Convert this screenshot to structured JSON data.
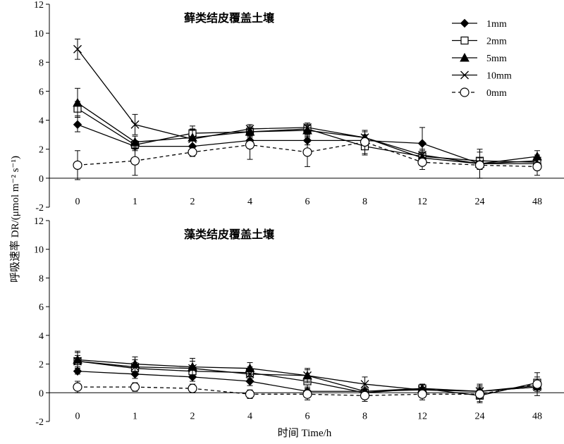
{
  "figure": {
    "y_axis_label": "呼吸速率 DR/(μmol m⁻² s⁻¹)",
    "x_axis_label": "时间 Time/h"
  },
  "legend": {
    "entries": [
      "1mm",
      "2mm",
      "5mm",
      "10mm",
      "0mm"
    ]
  },
  "chart_data": [
    {
      "type": "line",
      "title": "藓类结皮覆盖土壤",
      "categories": [
        "0",
        "1",
        "2",
        "4",
        "6",
        "8",
        "12",
        "24",
        "48"
      ],
      "ylim": [
        -2,
        12
      ],
      "yticks": [
        -2,
        0,
        2,
        4,
        6,
        8,
        10,
        12
      ],
      "grid": false,
      "legend_position": "top-right",
      "series": [
        {
          "name": "1mm",
          "marker": "diamond-filled",
          "dashed": false,
          "values": [
            3.7,
            2.2,
            2.2,
            2.6,
            2.6,
            2.6,
            2.4,
            1.0,
            1.0
          ],
          "errors": [
            0.5,
            0.3,
            0.4,
            0.3,
            0.3,
            0.4,
            1.1,
            0.3,
            0.3
          ]
        },
        {
          "name": "2mm",
          "marker": "square-open",
          "dashed": false,
          "values": [
            4.8,
            2.3,
            3.1,
            3.2,
            3.4,
            2.2,
            1.5,
            1.2,
            1.1
          ],
          "errors": [
            0.5,
            0.3,
            0.5,
            0.3,
            0.4,
            0.6,
            0.4,
            0.6,
            0.3
          ]
        },
        {
          "name": "5mm",
          "marker": "triangle-filled",
          "dashed": false,
          "values": [
            5.2,
            2.5,
            2.8,
            3.2,
            3.3,
            2.8,
            1.4,
            1.0,
            1.5
          ],
          "errors": [
            1.0,
            0.4,
            0.6,
            0.4,
            0.4,
            0.4,
            0.4,
            0.4,
            0.4
          ]
        },
        {
          "name": "10mm",
          "marker": "x",
          "dashed": false,
          "values": [
            8.9,
            3.7,
            2.7,
            3.4,
            3.5,
            2.8,
            1.6,
            1.0,
            1.2
          ],
          "errors": [
            0.7,
            0.7,
            0.6,
            0.3,
            0.3,
            0.5,
            0.4,
            1.0,
            0.4
          ]
        },
        {
          "name": "0mm",
          "marker": "circle-open",
          "dashed": true,
          "values": [
            0.9,
            1.2,
            1.8,
            2.3,
            1.8,
            2.5,
            1.1,
            0.9,
            0.8
          ],
          "errors": [
            1.0,
            1.0,
            0.3,
            1.0,
            1.0,
            0.8,
            0.5,
            0.3,
            0.6
          ]
        }
      ]
    },
    {
      "type": "line",
      "title": "藻类结皮覆盖土壤",
      "categories": [
        "0",
        "1",
        "2",
        "4",
        "6",
        "8",
        "12",
        "24",
        "48"
      ],
      "ylim": [
        -2,
        12
      ],
      "yticks": [
        -2,
        0,
        2,
        4,
        6,
        8,
        10,
        12
      ],
      "grid": false,
      "series": [
        {
          "name": "1mm",
          "marker": "diamond-filled",
          "dashed": false,
          "values": [
            1.5,
            1.3,
            1.1,
            0.8,
            0.1,
            0.1,
            0.2,
            0.1,
            0.4
          ],
          "errors": [
            0.2,
            0.3,
            0.3,
            0.3,
            0.2,
            0.2,
            0.2,
            0.2,
            0.2
          ]
        },
        {
          "name": "2mm",
          "marker": "square-open",
          "dashed": false,
          "values": [
            2.2,
            1.7,
            1.5,
            1.4,
            0.8,
            0.0,
            0.3,
            -0.2,
            0.7
          ],
          "errors": [
            0.4,
            0.4,
            0.4,
            0.4,
            0.4,
            0.3,
            0.3,
            0.4,
            0.4
          ]
        },
        {
          "name": "5mm",
          "marker": "triangle-filled",
          "dashed": false,
          "values": [
            2.3,
            2.0,
            1.8,
            1.7,
            1.2,
            0.1,
            0.3,
            0.1,
            0.5
          ],
          "errors": [
            0.6,
            0.5,
            0.6,
            0.4,
            0.4,
            0.3,
            0.3,
            0.3,
            0.3
          ]
        },
        {
          "name": "10mm",
          "marker": "x",
          "dashed": false,
          "values": [
            2.2,
            1.8,
            1.7,
            1.3,
            1.2,
            0.6,
            0.2,
            0.1,
            0.4
          ],
          "errors": [
            0.6,
            0.5,
            0.5,
            0.4,
            0.5,
            0.5,
            0.4,
            0.5,
            0.3
          ]
        },
        {
          "name": "0mm",
          "marker": "circle-open",
          "dashed": true,
          "values": [
            0.4,
            0.4,
            0.3,
            -0.1,
            -0.1,
            -0.2,
            -0.1,
            -0.1,
            0.6
          ],
          "errors": [
            0.4,
            0.3,
            0.3,
            0.3,
            0.4,
            0.4,
            0.4,
            0.6,
            0.8
          ]
        }
      ]
    }
  ]
}
